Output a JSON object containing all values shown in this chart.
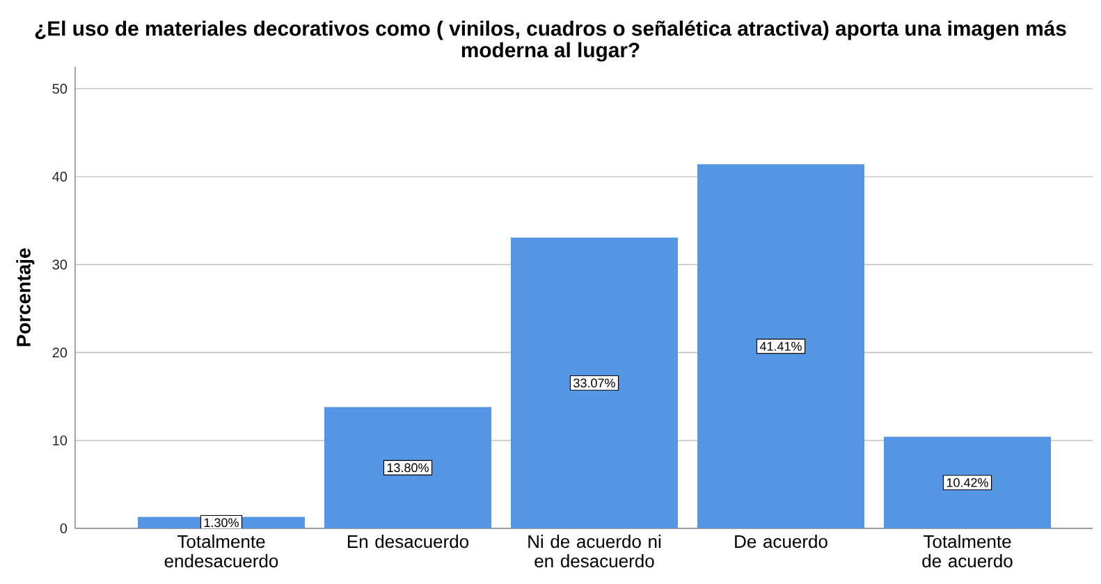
{
  "chart_data": {
    "type": "bar",
    "title": "¿El uso de materiales decorativos como ( vinilos, cuadros o señalética atractiva) aporta una imagen más moderna al lugar?",
    "ylabel": "Porcentaje",
    "categories": [
      "Totalmente endesacuerdo",
      "En desacuerdo",
      "Ni de acuerdo ni en desacuerdo",
      "De acuerdo",
      "Totalmente de acuerdo"
    ],
    "values": [
      1.3,
      13.8,
      33.07,
      41.41,
      10.42
    ],
    "value_labels": [
      "1.30%",
      "13.80%",
      "33.07%",
      "41.41%",
      "10.42%"
    ],
    "color": "#5596e4",
    "ylim": [
      0,
      52.5
    ],
    "yticks": [
      0,
      10,
      20,
      30,
      40,
      50
    ],
    "grid": "y"
  }
}
